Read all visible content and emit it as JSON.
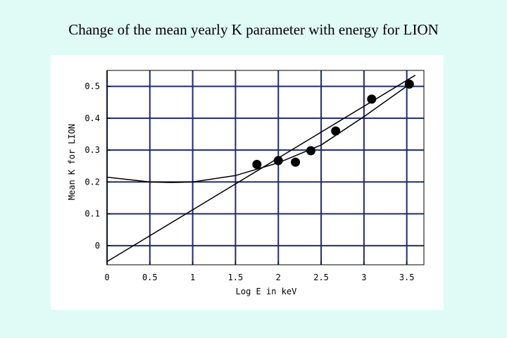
{
  "page": {
    "title": "Change of the mean yearly K parameter with energy for LION"
  },
  "chart_data": {
    "type": "scatter",
    "xlabel": "Log E in keV",
    "ylabel": "Mean K for LION",
    "xlim": [
      0,
      3.7
    ],
    "ylim": [
      -0.06,
      0.55
    ],
    "xticks": [
      0,
      0.5,
      1,
      1.5,
      2,
      2.5,
      3,
      3.5
    ],
    "xtick_labels": [
      "0",
      "0.5",
      "1",
      "1.5",
      "2",
      "2.5",
      "3",
      "3.5"
    ],
    "yticks": [
      0,
      0.1,
      0.2,
      0.3,
      0.4,
      0.5
    ],
    "ytick_labels": [
      "0",
      "0.1",
      "0.2",
      "0.3",
      "0.4",
      "0.5"
    ],
    "grid": true,
    "grid_color": "#1f2a6e",
    "points": {
      "x": [
        1.75,
        2.0,
        2.2,
        2.38,
        2.67,
        3.09,
        3.53
      ],
      "y": [
        0.255,
        0.267,
        0.262,
        0.298,
        0.36,
        0.46,
        0.507
      ]
    },
    "fit_lines": [
      {
        "type": "linear",
        "x": [
          0,
          3.6
        ],
        "y": [
          -0.05,
          0.535
        ]
      },
      {
        "type": "quadratic",
        "x": [
          0,
          0.5,
          0.75,
          1.0,
          1.5,
          2.0,
          2.5,
          3.0,
          3.55
        ],
        "y": [
          0.215,
          0.2,
          0.198,
          0.2,
          0.22,
          0.26,
          0.316,
          0.405,
          0.51
        ]
      }
    ]
  }
}
